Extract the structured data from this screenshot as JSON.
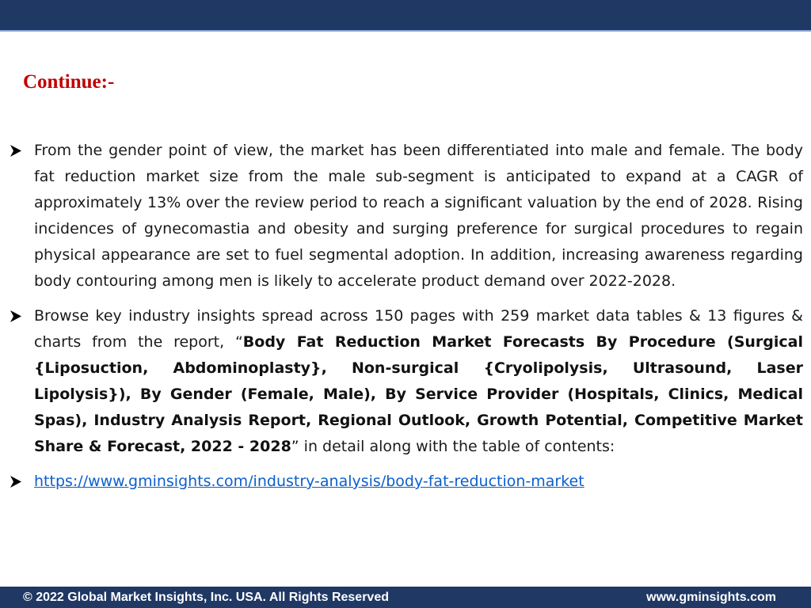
{
  "title": "Continue:-",
  "bullets": [
    {
      "text": "From the gender point of view, the market has been differentiated into male and female. The body fat reduction market size from the male sub-segment is anticipated to expand at a CAGR of approximately 13% over the review period to reach a significant valuation by the end of 2028. Rising incidences of gynecomastia and obesity and surging preference for surgical procedures to regain physical appearance are set to fuel segmental adoption. In addition, increasing awareness regarding body contouring among men is likely to accelerate product demand over 2022-2028."
    },
    {
      "prefix": "Browse key industry insights spread across 150 pages with 259 market data tables & 13 figures & charts from the report, “",
      "report_title": "Body Fat Reduction Market Forecasts By Procedure (Surgical {Liposuction, Abdominoplasty}, Non-surgical {Cryolipolysis, Ultrasound, Laser Lipolysis}), By Gender (Female, Male), By Service Provider (Hospitals, Clinics, Medical Spas), Industry Analysis Report, Regional Outlook, Growth Potential, Competitive Market Share & Forecast, 2022 - 2028",
      "suffix": "” in detail along with the table of contents:"
    },
    {
      "link": "https://www.gminsights.com/industry-analysis/body-fat-reduction-market"
    }
  ],
  "footer": {
    "copyright": "© 2022 Global Market Insights, Inc. USA. All Rights Reserved",
    "website": "www.gminsights.com"
  },
  "colors": {
    "header_bar": "#1f3864",
    "title": "#c00000",
    "link": "#0b5fcc"
  },
  "icons": {
    "bullet": "arrowhead-bullet-icon"
  }
}
